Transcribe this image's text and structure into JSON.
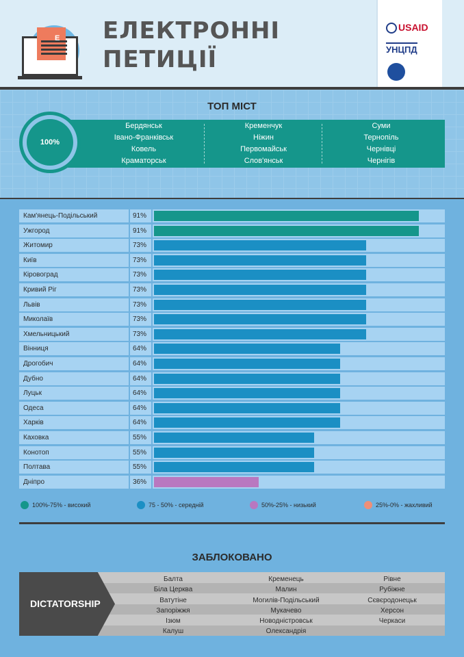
{
  "header": {
    "title_line1": "ЕЛЕКТРОННІ",
    "title_line2": "ПЕТИЦІЇ",
    "doc_letter": "Е",
    "logo_usaid": "USAID",
    "logo_uncpd": "УНЦПД"
  },
  "top": {
    "title": "ТОП МІСТ",
    "percent": "100%",
    "columns": [
      [
        "Бердянськ",
        "Івано-Франківськ",
        "Ковель",
        "Краматорськ"
      ],
      [
        "Кременчук",
        "Ніжин",
        "Первомайськ",
        "Слов'янськ"
      ],
      [
        "Суми",
        "Тернопіль",
        "Чернівці",
        "Чернігів"
      ]
    ]
  },
  "chart_data": {
    "type": "bar",
    "orientation": "horizontal",
    "xlim": [
      0,
      100
    ],
    "unit": "%",
    "categories": [
      "Кам'янець-Подільський",
      "Ужгород",
      "Житомир",
      "Київ",
      "Кіровоград",
      "Кривий Ріг",
      "Львів",
      "Миколаїв",
      "Хмельницький",
      "Вінниця",
      "Дрогобич",
      "Дубно",
      "Луцьк",
      "Одеса",
      "Харків",
      "Каховка",
      "Конотоп",
      "Полтава",
      "Дніпро"
    ],
    "values": [
      91,
      91,
      73,
      73,
      73,
      73,
      73,
      73,
      73,
      64,
      64,
      64,
      64,
      64,
      64,
      55,
      55,
      55,
      36
    ],
    "labels": [
      "91%",
      "91%",
      "73%",
      "73%",
      "73%",
      "73%",
      "73%",
      "73%",
      "73%",
      "64%",
      "64%",
      "64%",
      "64%",
      "64%",
      "64%",
      "55%",
      "55%",
      "55%",
      "36%"
    ],
    "legend": [
      {
        "label": "100%-75% - високий",
        "color": "#15968b"
      },
      {
        "label": "75 - 50% - середній",
        "color": "#1b8fc4"
      },
      {
        "label": "50%-25% - низький",
        "color": "#b978c0"
      },
      {
        "label": "25%-0% - жахливий",
        "color": "#ee8f78"
      }
    ],
    "legend_position": "bottom"
  },
  "blocked": {
    "title": "ЗАБЛОКОВАНО",
    "label": "DICTATORSHIP",
    "columns": [
      [
        "Балта",
        "Біла Церква",
        "Ватутіне",
        "Запоріжжя",
        "Ізюм",
        "Калуш"
      ],
      [
        "Кременець",
        "Малин",
        "Могилів-Подільський",
        "Мукачево",
        "Новодністровськ",
        "Олександрія"
      ],
      [
        "Рівне",
        "Рубіжне",
        "Сєвєродонецьк",
        "Херсон",
        "Черкаси"
      ]
    ]
  }
}
